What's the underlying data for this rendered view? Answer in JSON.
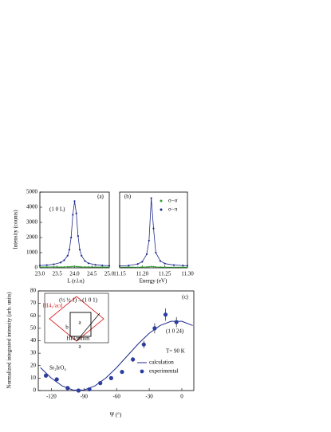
{
  "chart_data": [
    {
      "type": "line",
      "panel_label": "(a)",
      "annotation": "(1 0 L)",
      "x_label": "L (r.l.u)",
      "y_label": "Intensity (counts)",
      "x": [
        23.0,
        23.2,
        23.4,
        23.6,
        23.7,
        23.8,
        23.85,
        23.9,
        23.95,
        24.0,
        24.05,
        24.1,
        24.15,
        24.2,
        24.3,
        24.4,
        24.6,
        24.8,
        25.0
      ],
      "xlim": [
        23.0,
        25.0
      ],
      "xticks": [
        {
          "value": 23.0,
          "label": "23.0"
        },
        23.5,
        {
          "value": 24.0,
          "label": "24.0"
        },
        24.5,
        {
          "value": 25.0,
          "label": "25.0"
        }
      ],
      "ylim": [
        0,
        5000
      ],
      "yticks": [
        0,
        1000,
        2000,
        3000,
        4000,
        5000
      ],
      "series": [
        {
          "name": "σ−σ",
          "color": "#2ca02c",
          "values": [
            60,
            55,
            65,
            50,
            60,
            70,
            65,
            80,
            90,
            100,
            85,
            75,
            70,
            60,
            55,
            60,
            50,
            55,
            50
          ]
        },
        {
          "name": "σ−π",
          "color": "#1f2a8c",
          "values": [
            150,
            180,
            230,
            350,
            500,
            800,
            1200,
            2000,
            3500,
            4400,
            3600,
            2100,
            1200,
            800,
            450,
            300,
            200,
            160,
            140
          ]
        }
      ]
    },
    {
      "type": "line",
      "panel_label": "(b)",
      "x_label": "Energy (eV)",
      "x": [
        11.15,
        11.17,
        11.19,
        11.2,
        11.21,
        11.215,
        11.22,
        11.225,
        11.23,
        11.24,
        11.25,
        11.27,
        11.29,
        11.3
      ],
      "xlim": [
        11.15,
        11.3
      ],
      "xticks": [
        11.15,
        {
          "value": 11.2,
          "label": "11.20"
        },
        11.25,
        {
          "value": 11.3,
          "label": "11.30"
        }
      ],
      "ylim": [
        0,
        5000
      ],
      "legend": "upper right",
      "series": [
        {
          "name": "σ−σ",
          "color": "#2ca02c",
          "values": [
            45,
            50,
            40,
            55,
            60,
            70,
            90,
            75,
            60,
            50,
            45,
            40,
            45,
            40
          ]
        },
        {
          "name": "σ−π",
          "color": "#1f2a8c",
          "values": [
            120,
            150,
            250,
            400,
            900,
            1800,
            4600,
            2600,
            1000,
            450,
            280,
            180,
            150,
            140
          ]
        }
      ]
    },
    {
      "type": "scatter",
      "panel_label": "(c)",
      "x_label": "Ψ (°)",
      "y_label": "Normalized integrated intensity (arb. units)",
      "annotations": [
        "Sr₂IrO₄",
        "(1 0 24)",
        "T= 90 K",
        "(½ ½ 1)→(1 0 1)",
        "HI4₁/acd",
        "HI4/mmm",
        "a",
        "b",
        "a"
      ],
      "xlim": [
        -132,
        11
      ],
      "xticks": [
        -120,
        -90,
        -60,
        -30,
        0
      ],
      "ylim": [
        0,
        80
      ],
      "yticks": [
        0,
        10,
        20,
        30,
        40,
        50,
        60,
        70,
        80
      ],
      "legend": "lower right",
      "series": [
        {
          "name": "calculation",
          "type": "line",
          "color": "#1f2a8c",
          "x": [
            -130,
            -120,
            -110,
            -100,
            -90,
            -80,
            -70,
            -60,
            -50,
            -40,
            -30,
            -20,
            -10,
            0,
            10
          ],
          "values": [
            18.4,
            10.0,
            3.7,
            0.4,
            0.4,
            3.7,
            10.0,
            18.4,
            28,
            37.6,
            46,
            52.2,
            55.6,
            55.6,
            52.2
          ]
        },
        {
          "name": "experimental",
          "type": "scatter",
          "color": "#2b3d9e",
          "x": [
            -125,
            -115,
            -105,
            -95,
            -85,
            -75,
            -65,
            -55,
            -45,
            -35,
            -25,
            -15,
            -5
          ],
          "values": [
            12,
            9,
            2,
            0,
            1,
            6,
            10,
            15,
            25,
            37,
            50,
            61,
            55
          ],
          "errors": [
            1,
            1,
            1,
            1,
            1,
            1,
            1,
            1,
            2,
            3,
            4,
            5,
            4
          ]
        }
      ]
    }
  ]
}
